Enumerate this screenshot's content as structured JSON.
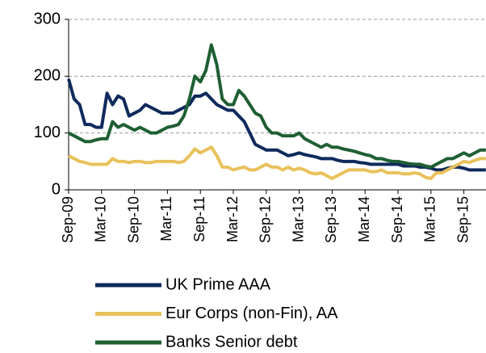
{
  "chart_data": {
    "type": "line",
    "categories": [
      "Sep-09",
      null,
      null,
      null,
      null,
      null,
      "Mar-10",
      null,
      null,
      null,
      null,
      null,
      "Sep-10",
      null,
      null,
      null,
      null,
      null,
      "Mar-11",
      null,
      null,
      null,
      null,
      null,
      "Sep-11",
      null,
      null,
      null,
      null,
      null,
      "Mar-12",
      null,
      null,
      null,
      null,
      null,
      "Sep-12",
      null,
      null,
      null,
      null,
      null,
      "Mar-13",
      null,
      null,
      null,
      null,
      null,
      "Sep-13",
      null,
      null,
      null,
      null,
      null,
      "Mar-14",
      null,
      null,
      null,
      null,
      null,
      "Sep-14",
      null,
      null,
      null,
      null,
      null,
      "Mar-15",
      null,
      null,
      null,
      null,
      null,
      "Sep-15",
      null,
      null,
      null,
      null
    ],
    "series": [
      {
        "name": "UK Prime AAA",
        "color": "#0f2a5c",
        "values": [
          195,
          160,
          150,
          115,
          115,
          110,
          110,
          170,
          150,
          165,
          160,
          130,
          135,
          140,
          150,
          145,
          140,
          135,
          135,
          135,
          140,
          145,
          150,
          165,
          165,
          170,
          160,
          150,
          145,
          140,
          140,
          130,
          120,
          100,
          80,
          75,
          70,
          70,
          70,
          65,
          60,
          62,
          65,
          62,
          60,
          58,
          55,
          55,
          55,
          52,
          50,
          50,
          50,
          48,
          47,
          45,
          45,
          45,
          45,
          45,
          45,
          42,
          42,
          42,
          40,
          40,
          38,
          35,
          35,
          38,
          40,
          40,
          38,
          35,
          35,
          35,
          35
        ]
      },
      {
        "name": "Eur Corps (non-Fin), AA",
        "color": "#e9c15c",
        "values": [
          60,
          55,
          50,
          48,
          45,
          45,
          45,
          45,
          55,
          50,
          50,
          48,
          50,
          50,
          48,
          48,
          50,
          50,
          50,
          50,
          48,
          50,
          60,
          72,
          65,
          70,
          75,
          60,
          40,
          40,
          35,
          38,
          40,
          35,
          35,
          40,
          45,
          40,
          40,
          35,
          40,
          35,
          38,
          35,
          30,
          28,
          30,
          25,
          20,
          25,
          30,
          35,
          35,
          35,
          35,
          32,
          32,
          35,
          30,
          30,
          30,
          28,
          28,
          30,
          28,
          22,
          20,
          30,
          30,
          35,
          40,
          45,
          50,
          48,
          52,
          55,
          55
        ]
      },
      {
        "name": "Banks Senior debt",
        "color": "#1f5f33",
        "values": [
          100,
          95,
          90,
          85,
          85,
          88,
          90,
          90,
          120,
          110,
          115,
          110,
          105,
          110,
          105,
          100,
          100,
          105,
          110,
          112,
          115,
          130,
          160,
          200,
          190,
          210,
          255,
          220,
          160,
          150,
          150,
          175,
          165,
          150,
          135,
          130,
          110,
          100,
          100,
          95,
          95,
          95,
          100,
          90,
          85,
          80,
          75,
          80,
          75,
          75,
          72,
          70,
          68,
          65,
          62,
          60,
          55,
          55,
          52,
          50,
          50,
          48,
          46,
          45,
          45,
          42,
          40,
          45,
          50,
          55,
          55,
          60,
          65,
          60,
          65,
          70,
          70
        ]
      }
    ],
    "ylim": [
      0,
      300
    ],
    "yticks": [
      0,
      100,
      200,
      300
    ],
    "grid": true,
    "legend": "bottom"
  }
}
